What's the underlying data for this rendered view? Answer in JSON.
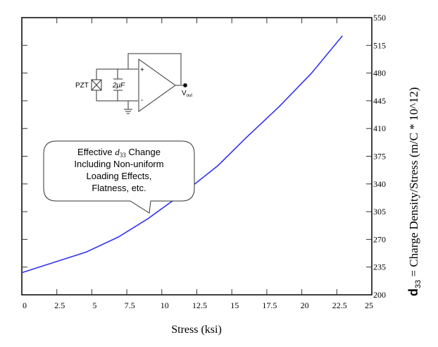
{
  "chart_data": {
    "type": "line",
    "title": "",
    "xlabel": "Stress (ksi)",
    "ylabel": "d33 = Charge Density/Stress (m/C * 10^12)",
    "ylabel_prefix": "d",
    "ylabel_sub": "33",
    "ylabel_rest": " = Charge Density/Stress (m/C * 10^12)",
    "xlim": [
      0,
      25
    ],
    "ylim": [
      200,
      550
    ],
    "x_ticks": [
      "0",
      "2.5",
      "5",
      "7.5",
      "10",
      "12.5",
      "15",
      "17.5",
      "20",
      "22.5",
      "25"
    ],
    "y_ticks": [
      "200",
      "235",
      "270",
      "305",
      "340",
      "375",
      "410",
      "445",
      "480",
      "515",
      "550"
    ],
    "y_axis_position": "right",
    "grid": false,
    "series": [
      {
        "name": "Effective d33",
        "color": "#3333ee",
        "x": [
          0,
          2.3,
          4.6,
          6.9,
          9.0,
          11.5,
          14.0,
          16.0,
          18.4,
          20.7,
          22.9
        ],
        "y": [
          228,
          241,
          254,
          273,
          296,
          328,
          363,
          398,
          438,
          480,
          527
        ]
      }
    ],
    "annotations": {
      "callout_lines": [
        "Effective d33 Change",
        "Including Non-uniform",
        "Loading Effects,",
        "Flatness, etc."
      ],
      "callout_line1_pre": "Effective ",
      "callout_line1_var": "d",
      "callout_line1_sub": "33",
      "callout_line1_post": " Change",
      "circuit": {
        "pzt_label": "PZT",
        "capacitor_label": "2μF",
        "plus_label": "+",
        "minus_label": "-",
        "output_label": "V",
        "output_sub": "out"
      }
    }
  }
}
